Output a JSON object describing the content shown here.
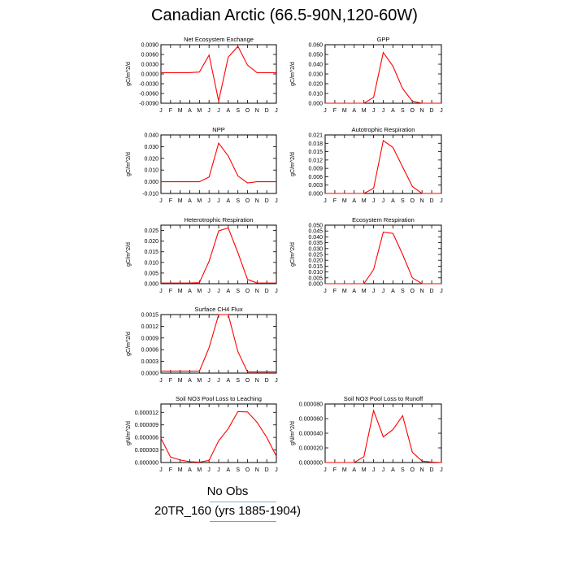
{
  "title": "Canadian Arctic (66.5-90N,120-60W)",
  "legend": [
    {
      "label": "No Obs",
      "color": "#8fa6d6"
    },
    {
      "label": "20TR_160 (yrs 1885-1904)",
      "color": "#ff6a6a"
    }
  ],
  "series_color": "#ff0000",
  "chart_data": [
    {
      "type": "line",
      "title": "Net Ecosystem Exchange",
      "ylabel": "gC/m^2/d",
      "categories": [
        "J",
        "F",
        "M",
        "A",
        "M",
        "J",
        "J",
        "A",
        "S",
        "O",
        "N",
        "D",
        "J"
      ],
      "yticks": [
        "-0.0090",
        "-0.0060",
        "-0.0030",
        "0.0000",
        "0.0030",
        "0.0060",
        "0.0090"
      ],
      "ylim": [
        -0.009,
        0.009
      ],
      "grid": false,
      "values": [
        0.0004,
        0.0004,
        0.0004,
        0.0004,
        0.0006,
        0.0058,
        -0.0083,
        0.0052,
        0.0085,
        0.0027,
        0.0004,
        0.0004,
        0.0004
      ]
    },
    {
      "type": "line",
      "title": "GPP",
      "ylabel": "gC/m^2/d",
      "categories": [
        "J",
        "F",
        "M",
        "A",
        "M",
        "J",
        "J",
        "A",
        "S",
        "O",
        "N",
        "D",
        "J"
      ],
      "yticks": [
        "0.000",
        "0.010",
        "0.020",
        "0.030",
        "0.040",
        "0.050",
        "0.060"
      ],
      "ylim": [
        0,
        0.06
      ],
      "grid": false,
      "values": [
        0,
        0,
        0,
        0,
        0,
        0.006,
        0.052,
        0.038,
        0.015,
        0.002,
        0,
        0,
        0
      ]
    },
    {
      "type": "line",
      "title": "NPP",
      "ylabel": "gC/m^2/d",
      "categories": [
        "J",
        "F",
        "M",
        "A",
        "M",
        "J",
        "J",
        "A",
        "S",
        "O",
        "N",
        "D",
        "J"
      ],
      "yticks": [
        "-0.010",
        "0.000",
        "0.010",
        "0.020",
        "0.030",
        "0.040"
      ],
      "ylim": [
        -0.01,
        0.04
      ],
      "grid": false,
      "values": [
        0,
        0,
        0,
        0,
        0,
        0.004,
        0.033,
        0.022,
        0.005,
        -0.001,
        0,
        0,
        0
      ]
    },
    {
      "type": "line",
      "title": "Autotrophic Respiration",
      "ylabel": "gC/m^2/d",
      "categories": [
        "J",
        "F",
        "M",
        "A",
        "M",
        "J",
        "J",
        "A",
        "S",
        "O",
        "N",
        "D",
        "J"
      ],
      "yticks": [
        "0.000",
        "0.003",
        "0.006",
        "0.009",
        "0.012",
        "0.015",
        "0.018",
        "0.021"
      ],
      "ylim": [
        0,
        0.021
      ],
      "grid": false,
      "values": [
        0,
        0,
        0,
        0,
        0,
        0.0018,
        0.019,
        0.0165,
        0.0095,
        0.0025,
        0,
        0,
        0
      ]
    },
    {
      "type": "line",
      "title": "Heterotrophic Respiration",
      "ylabel": "gC/m^2/d",
      "categories": [
        "J",
        "F",
        "M",
        "A",
        "M",
        "J",
        "J",
        "A",
        "S",
        "O",
        "N",
        "D",
        "J"
      ],
      "yticks": [
        "0.000",
        "0.005",
        "0.010",
        "0.015",
        "0.020",
        "0.025"
      ],
      "ylim": [
        0,
        0.0275
      ],
      "grid": false,
      "values": [
        0.0003,
        0.0003,
        0.0003,
        0.0003,
        0.0005,
        0.0105,
        0.0248,
        0.0262,
        0.0145,
        0.002,
        0.0003,
        0.0003,
        0.0003
      ]
    },
    {
      "type": "line",
      "title": "Ecosystem Respiration",
      "ylabel": "gC/m^2/d",
      "categories": [
        "J",
        "F",
        "M",
        "A",
        "M",
        "J",
        "J",
        "A",
        "S",
        "O",
        "N",
        "D",
        "J"
      ],
      "yticks": [
        "0.000",
        "0.005",
        "0.010",
        "0.015",
        "0.020",
        "0.025",
        "0.030",
        "0.035",
        "0.040",
        "0.045",
        "0.050"
      ],
      "ylim": [
        0,
        0.05
      ],
      "grid": false,
      "values": [
        0,
        0,
        0,
        0,
        0,
        0.012,
        0.044,
        0.043,
        0.025,
        0.005,
        0,
        0,
        0
      ]
    },
    {
      "type": "line",
      "title": "Surface CH4 Flux",
      "ylabel": "gC/m^2/d",
      "categories": [
        "J",
        "F",
        "M",
        "A",
        "M",
        "J",
        "J",
        "A",
        "S",
        "O",
        "N",
        "D",
        "J"
      ],
      "yticks": [
        "0.0000",
        "0.0003",
        "0.0006",
        "0.0009",
        "0.0012",
        "0.0015"
      ],
      "ylim": [
        0,
        0.0015
      ],
      "grid": false,
      "values": [
        5e-05,
        5e-05,
        5e-05,
        5e-05,
        5e-05,
        0.00065,
        0.0015,
        0.0015,
        0.00055,
        3e-05,
        3e-05,
        3e-05,
        3e-05
      ]
    },
    {
      "type": "line",
      "title": "Soil NO3 Pool Loss to Leaching",
      "ylabel": "gN/m^2/d",
      "categories": [
        "J",
        "F",
        "M",
        "A",
        "M",
        "J",
        "J",
        "A",
        "S",
        "O",
        "N",
        "D",
        "J"
      ],
      "yticks": [
        "0.000000",
        "0.000003",
        "0.000006",
        "0.000009",
        "0.000012"
      ],
      "ylim": [
        0,
        1.4e-05
      ],
      "grid": false,
      "values": [
        5.8e-06,
        1.3e-06,
        6e-07,
        2e-07,
        1e-07,
        5e-07,
        5.2e-06,
        8.1e-06,
        1.22e-05,
        1.21e-05,
        9.6e-06,
        6e-06,
        1.5e-06
      ]
    },
    {
      "type": "line",
      "title": "Soil NO3 Pool Loss to Runoff",
      "ylabel": "gN/m^2/d",
      "categories": [
        "J",
        "F",
        "M",
        "A",
        "M",
        "J",
        "J",
        "A",
        "S",
        "O",
        "N",
        "D",
        "J"
      ],
      "yticks": [
        "0.000000",
        "0.000020",
        "0.000040",
        "0.000060",
        "0.000080"
      ],
      "ylim": [
        0,
        8e-05
      ],
      "grid": false,
      "values": [
        0,
        0,
        0,
        0,
        8e-06,
        7.1e-05,
        3.5e-05,
        4.5e-05,
        6.4e-05,
        1.4e-05,
        2e-06,
        5e-07,
        0
      ]
    }
  ]
}
